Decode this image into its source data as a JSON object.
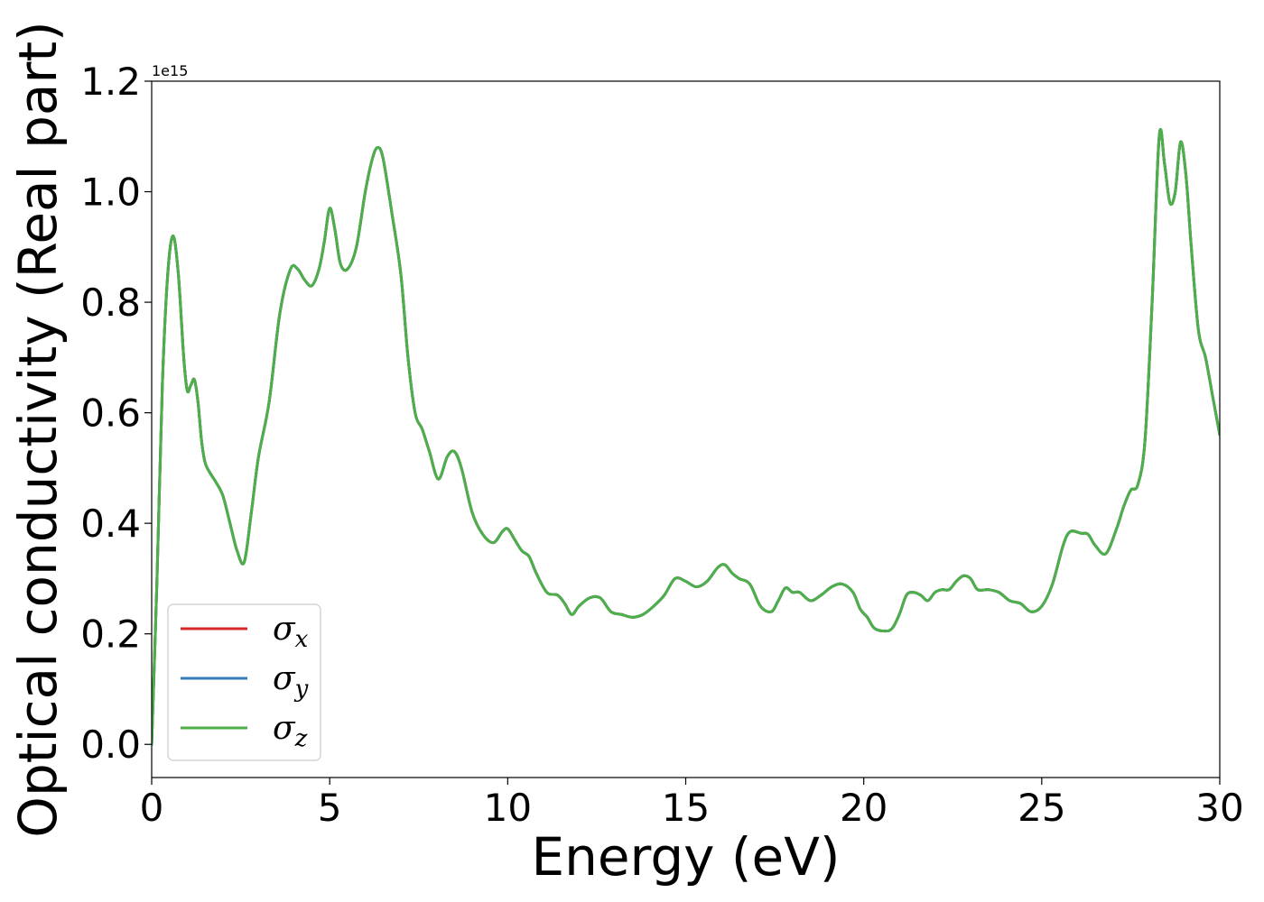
{
  "chart_data": {
    "type": "line",
    "title": "",
    "xlabel": "Energy (eV)",
    "ylabel": "Optical conductivity (Real part)",
    "y_offset_label": "1e15",
    "xlim": [
      0,
      30
    ],
    "ylim": [
      -0.06,
      1.2
    ],
    "xticks": [
      0,
      5,
      10,
      15,
      20,
      25,
      30
    ],
    "yticks": [
      0.0,
      0.2,
      0.4,
      0.6,
      0.8,
      1.0,
      1.2
    ],
    "xtick_labels": [
      "0",
      "5",
      "10",
      "15",
      "20",
      "25",
      "30"
    ],
    "ytick_labels": [
      "0.0",
      "0.2",
      "0.4",
      "0.6",
      "0.8",
      "1.0",
      "1.2"
    ],
    "grid": false,
    "legend_position": "lower-left",
    "x": [
      0.0,
      0.15,
      0.3,
      0.45,
      0.6,
      0.75,
      0.9,
      1.0,
      1.1,
      1.2,
      1.3,
      1.4,
      1.5,
      1.65,
      1.8,
      2.0,
      2.2,
      2.4,
      2.6,
      2.8,
      3.0,
      3.3,
      3.6,
      3.9,
      4.1,
      4.3,
      4.5,
      4.7,
      4.85,
      5.0,
      5.15,
      5.3,
      5.5,
      5.75,
      6.0,
      6.2,
      6.35,
      6.5,
      6.75,
      7.0,
      7.2,
      7.4,
      7.6,
      7.8,
      8.05,
      8.3,
      8.5,
      8.7,
      9.0,
      9.3,
      9.6,
      9.85,
      10.0,
      10.2,
      10.4,
      10.6,
      10.8,
      11.1,
      11.4,
      11.6,
      11.8,
      12.0,
      12.3,
      12.6,
      12.9,
      13.2,
      13.5,
      13.8,
      14.1,
      14.4,
      14.7,
      15.0,
      15.3,
      15.6,
      15.9,
      16.1,
      16.3,
      16.5,
      16.8,
      17.1,
      17.4,
      17.6,
      17.8,
      18.0,
      18.2,
      18.5,
      18.8,
      19.1,
      19.4,
      19.7,
      19.9,
      20.1,
      20.3,
      20.6,
      20.8,
      21.0,
      21.2,
      21.4,
      21.6,
      21.8,
      22.0,
      22.2,
      22.4,
      22.6,
      22.8,
      23.0,
      23.2,
      23.5,
      23.8,
      24.1,
      24.4,
      24.7,
      25.0,
      25.3,
      25.6,
      25.8,
      26.1,
      26.3,
      26.5,
      26.8,
      27.1,
      27.3,
      27.5,
      27.7,
      27.9,
      28.1,
      28.3,
      28.45,
      28.6,
      28.75,
      28.9,
      29.05,
      29.2,
      29.4,
      29.6,
      29.8,
      30.0
    ],
    "series": [
      {
        "name": "σx",
        "color": "#d62728",
        "values": [
          0.0,
          0.3,
          0.65,
          0.85,
          0.92,
          0.85,
          0.7,
          0.64,
          0.65,
          0.66,
          0.62,
          0.55,
          0.51,
          0.49,
          0.475,
          0.45,
          0.4,
          0.35,
          0.33,
          0.42,
          0.52,
          0.62,
          0.78,
          0.86,
          0.86,
          0.84,
          0.83,
          0.86,
          0.91,
          0.97,
          0.93,
          0.87,
          0.86,
          0.9,
          1.0,
          1.06,
          1.08,
          1.06,
          0.96,
          0.85,
          0.7,
          0.6,
          0.57,
          0.53,
          0.48,
          0.52,
          0.53,
          0.5,
          0.42,
          0.38,
          0.365,
          0.385,
          0.39,
          0.37,
          0.35,
          0.34,
          0.31,
          0.275,
          0.27,
          0.255,
          0.235,
          0.25,
          0.265,
          0.265,
          0.24,
          0.235,
          0.23,
          0.235,
          0.25,
          0.27,
          0.3,
          0.295,
          0.285,
          0.295,
          0.32,
          0.325,
          0.31,
          0.3,
          0.29,
          0.25,
          0.24,
          0.26,
          0.283,
          0.275,
          0.275,
          0.26,
          0.27,
          0.285,
          0.29,
          0.275,
          0.245,
          0.23,
          0.21,
          0.205,
          0.21,
          0.235,
          0.27,
          0.275,
          0.27,
          0.26,
          0.275,
          0.28,
          0.28,
          0.295,
          0.305,
          0.3,
          0.28,
          0.28,
          0.275,
          0.26,
          0.255,
          0.24,
          0.25,
          0.29,
          0.36,
          0.385,
          0.382,
          0.38,
          0.36,
          0.345,
          0.39,
          0.43,
          0.46,
          0.47,
          0.55,
          0.8,
          1.1,
          1.05,
          0.98,
          1.0,
          1.09,
          1.03,
          0.9,
          0.75,
          0.7,
          0.63,
          0.56
        ]
      },
      {
        "name": "σy",
        "color": "#377eb8",
        "values": [
          0.0,
          0.3,
          0.65,
          0.85,
          0.92,
          0.85,
          0.7,
          0.64,
          0.65,
          0.66,
          0.62,
          0.55,
          0.51,
          0.49,
          0.475,
          0.45,
          0.4,
          0.35,
          0.33,
          0.42,
          0.52,
          0.62,
          0.78,
          0.86,
          0.86,
          0.84,
          0.83,
          0.86,
          0.91,
          0.97,
          0.93,
          0.87,
          0.86,
          0.9,
          1.0,
          1.06,
          1.08,
          1.06,
          0.96,
          0.85,
          0.7,
          0.6,
          0.57,
          0.53,
          0.48,
          0.52,
          0.53,
          0.5,
          0.42,
          0.38,
          0.365,
          0.385,
          0.39,
          0.37,
          0.35,
          0.34,
          0.31,
          0.275,
          0.27,
          0.255,
          0.235,
          0.25,
          0.265,
          0.265,
          0.24,
          0.235,
          0.23,
          0.235,
          0.25,
          0.27,
          0.3,
          0.295,
          0.285,
          0.295,
          0.32,
          0.325,
          0.31,
          0.3,
          0.29,
          0.25,
          0.24,
          0.26,
          0.283,
          0.275,
          0.275,
          0.26,
          0.27,
          0.285,
          0.29,
          0.275,
          0.245,
          0.23,
          0.21,
          0.205,
          0.21,
          0.235,
          0.27,
          0.275,
          0.27,
          0.26,
          0.275,
          0.28,
          0.28,
          0.295,
          0.305,
          0.3,
          0.28,
          0.28,
          0.275,
          0.26,
          0.255,
          0.24,
          0.25,
          0.29,
          0.36,
          0.385,
          0.382,
          0.38,
          0.36,
          0.345,
          0.39,
          0.43,
          0.46,
          0.47,
          0.55,
          0.8,
          1.1,
          1.05,
          0.98,
          1.0,
          1.09,
          1.03,
          0.9,
          0.75,
          0.7,
          0.63,
          0.56
        ]
      },
      {
        "name": "σz",
        "color": "#4daf4a",
        "values": [
          0.0,
          0.3,
          0.65,
          0.85,
          0.92,
          0.85,
          0.7,
          0.64,
          0.65,
          0.66,
          0.62,
          0.55,
          0.51,
          0.49,
          0.475,
          0.45,
          0.4,
          0.35,
          0.33,
          0.42,
          0.52,
          0.62,
          0.78,
          0.86,
          0.86,
          0.84,
          0.83,
          0.86,
          0.91,
          0.97,
          0.93,
          0.87,
          0.86,
          0.9,
          1.0,
          1.06,
          1.08,
          1.06,
          0.96,
          0.85,
          0.7,
          0.6,
          0.57,
          0.53,
          0.48,
          0.52,
          0.53,
          0.5,
          0.42,
          0.38,
          0.365,
          0.385,
          0.39,
          0.37,
          0.35,
          0.34,
          0.31,
          0.275,
          0.27,
          0.255,
          0.235,
          0.25,
          0.265,
          0.265,
          0.24,
          0.235,
          0.23,
          0.235,
          0.25,
          0.27,
          0.3,
          0.295,
          0.285,
          0.295,
          0.32,
          0.325,
          0.31,
          0.3,
          0.29,
          0.25,
          0.24,
          0.26,
          0.283,
          0.275,
          0.275,
          0.26,
          0.27,
          0.285,
          0.29,
          0.275,
          0.245,
          0.23,
          0.21,
          0.205,
          0.21,
          0.235,
          0.27,
          0.275,
          0.27,
          0.26,
          0.275,
          0.28,
          0.28,
          0.295,
          0.305,
          0.3,
          0.28,
          0.28,
          0.275,
          0.26,
          0.255,
          0.24,
          0.25,
          0.29,
          0.36,
          0.385,
          0.382,
          0.38,
          0.36,
          0.345,
          0.39,
          0.43,
          0.46,
          0.47,
          0.55,
          0.8,
          1.1,
          1.05,
          0.98,
          1.0,
          1.09,
          1.03,
          0.9,
          0.75,
          0.7,
          0.63,
          0.56
        ]
      }
    ],
    "legend": [
      {
        "symbol": "σ",
        "sub": "x",
        "color": "#d62728"
      },
      {
        "symbol": "σ",
        "sub": "y",
        "color": "#377eb8"
      },
      {
        "symbol": "σ",
        "sub": "z",
        "color": "#4daf4a"
      }
    ]
  }
}
